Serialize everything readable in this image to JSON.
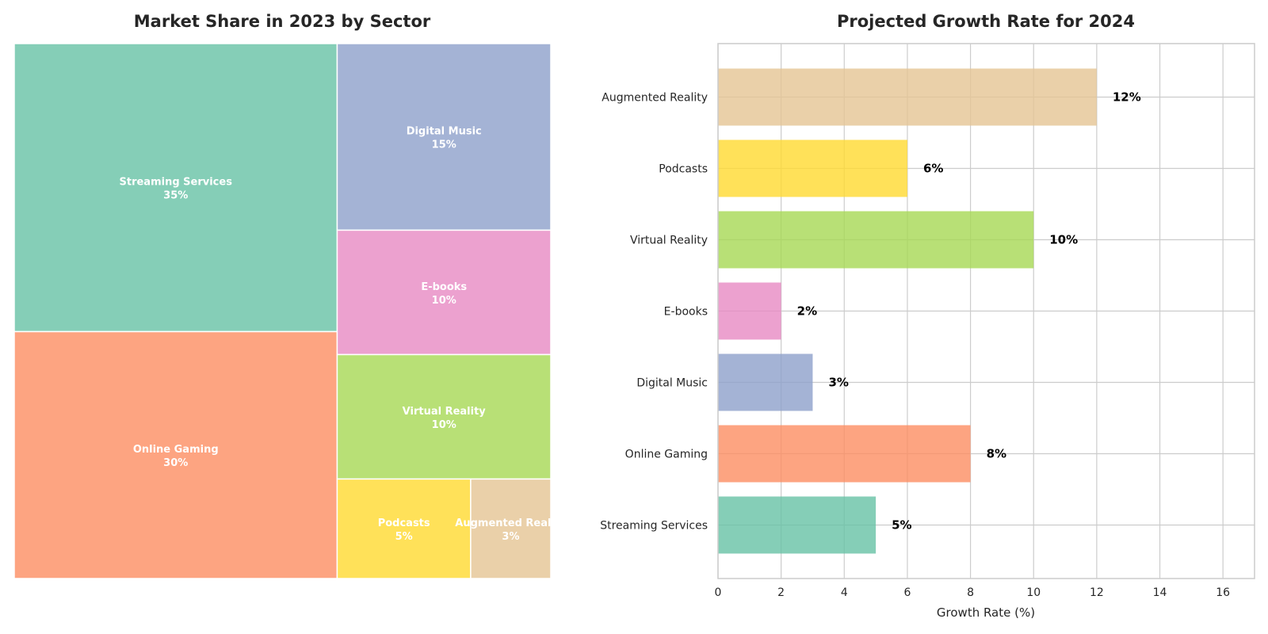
{
  "chart_data": [
    {
      "type": "treemap",
      "title": "Market Share in 2023 by Sector",
      "series": [
        {
          "name": "Streaming Services",
          "value": 35,
          "value_label": "35%",
          "color": "#66c2a5"
        },
        {
          "name": "Online Gaming",
          "value": 30,
          "value_label": "30%",
          "color": "#fc8d62"
        },
        {
          "name": "Digital Music",
          "value": 15,
          "value_label": "15%",
          "color": "#8da0cb"
        },
        {
          "name": "E-books",
          "value": 10,
          "value_label": "10%",
          "color": "#e78ac3"
        },
        {
          "name": "Virtual Reality",
          "value": 10,
          "value_label": "10%",
          "color": "#a6d854"
        },
        {
          "name": "Podcasts",
          "value": 5,
          "value_label": "5%",
          "color": "#ffd92f"
        },
        {
          "name": "Augmented Reality",
          "value": 3,
          "value_label": "3%",
          "color": "#e5c494"
        }
      ]
    },
    {
      "type": "bar",
      "orientation": "horizontal",
      "title": "Projected Growth Rate for 2024",
      "xlabel": "Growth Rate (%)",
      "ylabel": "",
      "xlim": [
        0,
        17
      ],
      "xticks": [
        "0",
        "2",
        "4",
        "6",
        "8",
        "10",
        "12",
        "14",
        "16"
      ],
      "grid": true,
      "categories": [
        "Streaming Services",
        "Online Gaming",
        "Digital Music",
        "E-books",
        "Virtual Reality",
        "Podcasts",
        "Augmented Reality"
      ],
      "values": [
        5,
        8,
        3,
        2,
        10,
        6,
        12
      ],
      "value_labels": [
        "5%",
        "8%",
        "3%",
        "2%",
        "10%",
        "6%",
        "12%"
      ],
      "colors": [
        "#66c2a5",
        "#fc8d62",
        "#8da0cb",
        "#e78ac3",
        "#a6d854",
        "#ffd92f",
        "#e5c494"
      ]
    }
  ]
}
